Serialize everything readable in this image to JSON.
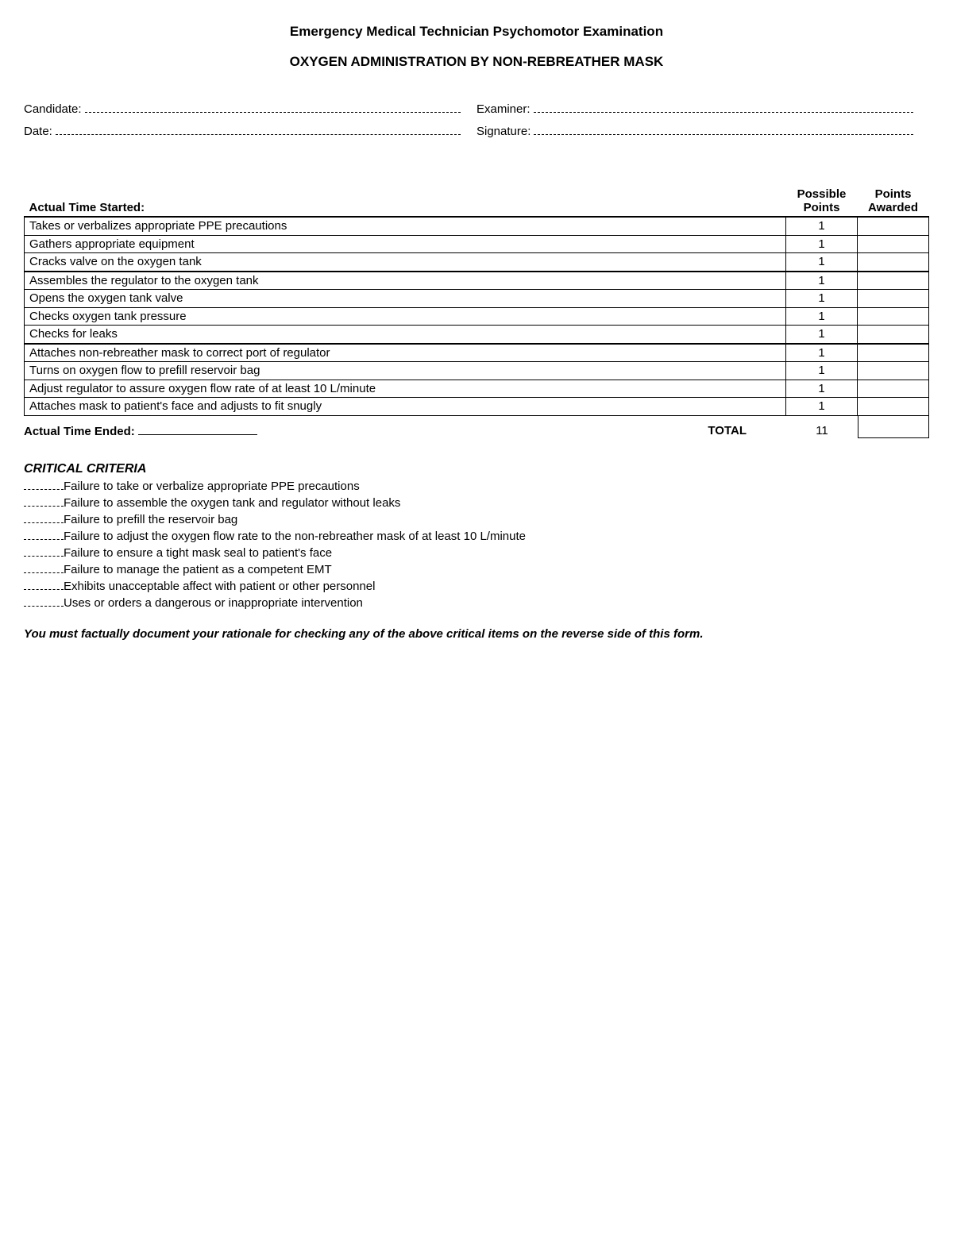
{
  "header": {
    "title": "Emergency Medical Technician Psychomotor Examination",
    "subtitle": "OXYGEN ADMINISTRATION BY NON-REBREATHER MASK"
  },
  "fields": {
    "candidate_label": "Candidate:",
    "examiner_label": "Examiner:",
    "date_label": "Date:",
    "signature_label": "Signature:"
  },
  "table": {
    "col1_header": "Actual Time Started:",
    "col2_header": "Possible Points",
    "col3_header": "Points Awarded",
    "rows": [
      {
        "text": "Takes or verbalizes appropriate PPE precautions",
        "points": "1",
        "section_start": true
      },
      {
        "text": "Gathers appropriate equipment",
        "points": "1"
      },
      {
        "text": "Cracks valve on the oxygen tank",
        "points": "1"
      },
      {
        "text": "Assembles the regulator to the oxygen tank",
        "points": "1",
        "section_start": true
      },
      {
        "text": "Opens the oxygen tank valve",
        "points": "1"
      },
      {
        "text": "Checks oxygen tank pressure",
        "points": "1"
      },
      {
        "text": "Checks for leaks",
        "points": "1"
      },
      {
        "text": "Attaches non-rebreather mask to correct port of regulator",
        "points": "1",
        "section_start": true
      },
      {
        "text": "Turns on oxygen flow to prefill reservoir bag",
        "points": "1"
      },
      {
        "text": "Adjust regulator to assure oxygen flow rate of at least 10 L/minute",
        "points": "1"
      },
      {
        "text": "Attaches mask to patient's face and adjusts to fit snugly",
        "points": "1"
      }
    ],
    "time_ended_label": "Actual Time Ended:",
    "total_label": "TOTAL",
    "total_points": "11"
  },
  "criteria": {
    "title": "CRITICAL CRITERIA",
    "items": [
      "Failure to take or verbalize appropriate PPE precautions",
      "Failure to assemble the oxygen tank and regulator without leaks",
      "Failure to prefill the reservoir bag",
      "Failure to adjust the oxygen flow rate to the non-rebreather mask of at least 10 L/minute",
      "Failure to ensure a tight mask seal to patient's face",
      "Failure to manage the patient as a competent EMT",
      "Exhibits unacceptable affect with patient or other personnel",
      "Uses or orders a dangerous or inappropriate intervention"
    ]
  },
  "footer_note": "You must factually document your rationale for checking any of the above critical items on the reverse side of this form."
}
